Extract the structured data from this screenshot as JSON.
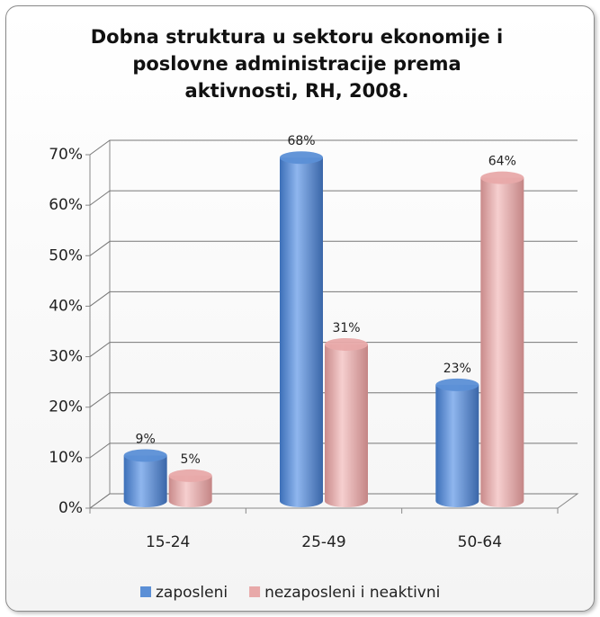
{
  "chart_data": {
    "type": "bar3d",
    "title": "Dobna struktura u sektoru ekonomije i poslovne administracije prema aktivnosti, RH, 2008.",
    "categories": [
      "15-24",
      "25-49",
      "50-64"
    ],
    "series": [
      {
        "name": "zaposleni",
        "color": "#5b8fd6",
        "values": [
          9,
          68,
          23
        ],
        "value_labels": [
          "9%",
          "68%",
          "23%"
        ]
      },
      {
        "name": "nezaposleni i neaktivni",
        "color": "#e8a9a9",
        "values": [
          5,
          31,
          64
        ],
        "value_labels": [
          "5%",
          "31%",
          "64%"
        ]
      }
    ],
    "ylim": [
      0,
      70
    ],
    "yticks": [
      {
        "value": 0,
        "label": "0%"
      },
      {
        "value": 10,
        "label": "10%"
      },
      {
        "value": 20,
        "label": "20%"
      },
      {
        "value": 30,
        "label": "30%"
      },
      {
        "value": 40,
        "label": "40%"
      },
      {
        "value": 50,
        "label": "50%"
      },
      {
        "value": 60,
        "label": "60%"
      },
      {
        "value": 70,
        "label": "70%"
      }
    ],
    "grid": true,
    "legend": "bottom"
  }
}
